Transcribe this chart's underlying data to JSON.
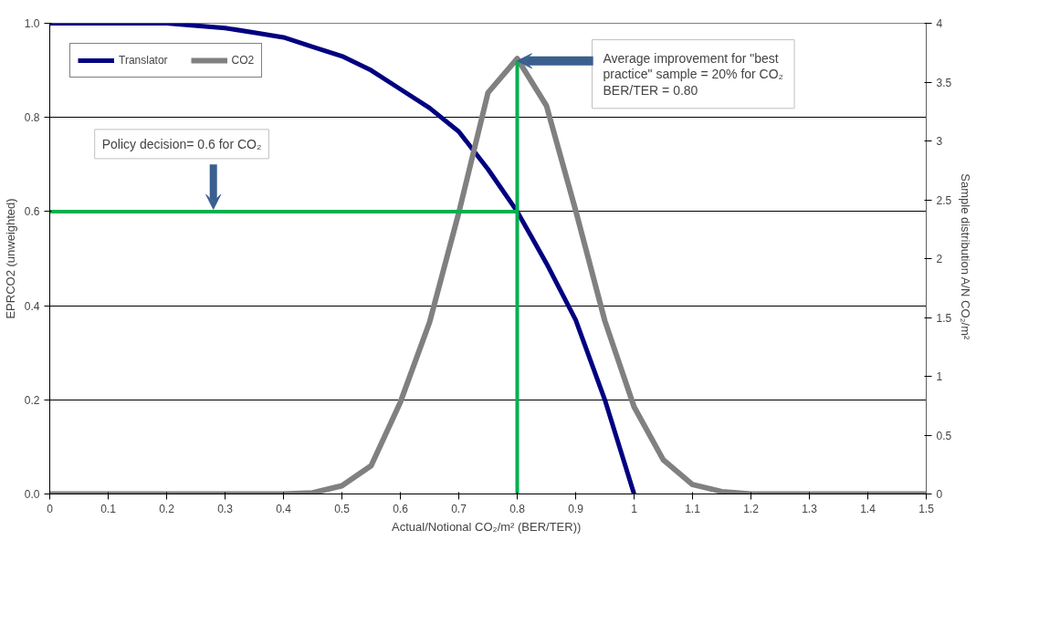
{
  "chart_data": {
    "type": "line",
    "xlabel": "Actual/Notional  CO₂/m² (BER/TER))",
    "ylabel": "EPRCO2 (unweighted)",
    "y2label": "Sample distribution  A/N CO₂/m²",
    "xlim": [
      0,
      1.5
    ],
    "xticks": [
      0,
      0.1,
      0.2,
      0.3,
      0.4,
      0.5,
      0.6,
      0.7,
      0.8,
      0.9,
      1,
      1.1,
      1.2,
      1.3,
      1.4,
      1.5
    ],
    "ylim": [
      0,
      1
    ],
    "yticks": [
      {
        "value": 0,
        "label": "0.0"
      },
      0.2,
      0.4,
      0.6,
      0.8,
      {
        "value": 1,
        "label": "1.0"
      }
    ],
    "y2lim": [
      0,
      4
    ],
    "y2ticks": [
      0,
      0.5,
      1,
      1.5,
      2,
      2.5,
      3,
      3.5,
      4
    ],
    "grid": "y",
    "legend": "top",
    "line_style": "solid",
    "series": [
      {
        "name": "Translator",
        "color": "#000080",
        "x": [
          0,
          0.1,
          0.2,
          0.3,
          0.35,
          0.4,
          0.45,
          0.5,
          0.55,
          0.6,
          0.65,
          0.7,
          0.75,
          0.8,
          0.85,
          0.9,
          0.95,
          1.0
        ],
        "values": [
          1,
          1,
          1,
          0.99,
          0.98,
          0.97,
          0.95,
          0.93,
          0.9,
          0.86,
          0.82,
          0.77,
          0.69,
          0.6,
          0.49,
          0.37,
          0.2,
          0
        ]
      },
      {
        "name": "CO2",
        "color": "#808080",
        "axis": "y2",
        "x": [
          0,
          0.1,
          0.2,
          0.3,
          0.4,
          0.45,
          0.5,
          0.55,
          0.6,
          0.65,
          0.7,
          0.75,
          0.8,
          0.85,
          0.9,
          0.95,
          1.0,
          1.05,
          1.1,
          1.15,
          1.2,
          1.3,
          1.4,
          1.5
        ],
        "values": [
          0,
          0,
          0,
          0,
          0,
          0.01,
          0.07,
          0.24,
          0.78,
          1.46,
          2.39,
          3.41,
          3.7,
          3.3,
          2.41,
          1.47,
          0.74,
          0.29,
          0.08,
          0.02,
          0,
          0,
          0,
          0
        ]
      },
      {
        "color": "#00b050",
        "x": [
          0,
          0.8
        ],
        "values": [
          0.6,
          0.6
        ]
      },
      {
        "color": "#00b050",
        "x": [
          0.8,
          0.8
        ],
        "values": [
          0,
          0.92
        ]
      }
    ],
    "annotations": [
      {
        "text": "Policy decision= 0.6 for CO₂",
        "x": 0.28,
        "y": 0.6
      },
      {
        "text": "Average improvement  for \"best practice\" sample = 20% for CO₂ BER/TER = 0.80",
        "x": 0.8,
        "y": 0.92
      }
    ]
  }
}
